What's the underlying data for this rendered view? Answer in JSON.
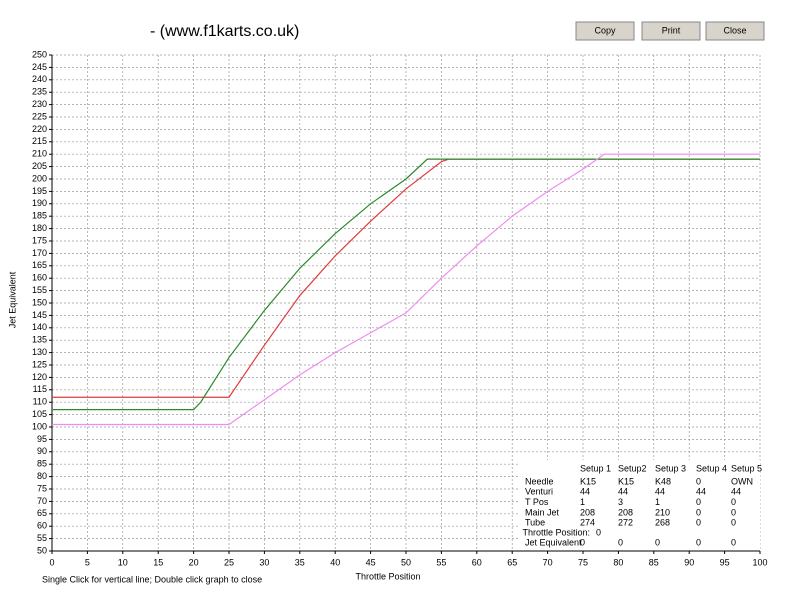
{
  "window": {
    "title": "- (www.f1karts.co.uk)",
    "buttons": [
      "Copy",
      "Print",
      "Close"
    ],
    "footer": "Single Click for vertical line; Double click graph to close"
  },
  "chart_data": {
    "type": "line",
    "x_label": "Throttle Position",
    "y_label": "Jet Equivalent",
    "xlim": [
      0,
      100
    ],
    "ylim": [
      50,
      250
    ],
    "xticks": [
      0,
      5,
      10,
      15,
      20,
      25,
      30,
      35,
      40,
      45,
      50,
      55,
      60,
      65,
      70,
      75,
      80,
      85,
      90,
      95,
      100
    ],
    "yticks": [
      50,
      55,
      60,
      65,
      70,
      75,
      80,
      85,
      90,
      95,
      100,
      105,
      110,
      115,
      120,
      125,
      130,
      135,
      140,
      145,
      150,
      155,
      160,
      165,
      170,
      175,
      180,
      185,
      190,
      195,
      200,
      205,
      210,
      215,
      220,
      225,
      230,
      235,
      240,
      245,
      250
    ],
    "grid": true,
    "series": [
      {
        "color": "#e03a3a",
        "x": [
          0,
          25,
          30,
          35,
          40,
          45,
          50,
          55,
          56,
          100
        ],
        "values": [
          112,
          112,
          133,
          153,
          169,
          183,
          196,
          207,
          208,
          208
        ]
      },
      {
        "color": "#2a8a2a",
        "x": [
          0,
          20,
          21,
          25,
          30,
          35,
          40,
          45,
          50,
          53,
          100
        ],
        "values": [
          107,
          107,
          110,
          128,
          147,
          164,
          178,
          190,
          200,
          208,
          208
        ]
      },
      {
        "color": "#f08cf0",
        "x": [
          0,
          25,
          30,
          35,
          40,
          45,
          50,
          55,
          60,
          65,
          70,
          75,
          78,
          100
        ],
        "values": [
          101,
          101,
          111,
          121,
          130,
          138,
          146,
          160,
          173,
          185,
          195,
          204,
          210,
          210
        ]
      }
    ]
  },
  "info_panel": {
    "headers": [
      {
        "label": "Setup 1",
        "color": "#e03a3a"
      },
      {
        "label": "Setup2",
        "color": "#2a8a2a"
      },
      {
        "label": "Setup 3",
        "color": "#e040e0"
      },
      {
        "label": "Setup 4",
        "color": "#2a2ae0"
      },
      {
        "label": "Setup 5",
        "color": "#a01010"
      }
    ],
    "rows": [
      {
        "label": "Needle",
        "cells": [
          "K15",
          "K15",
          "K48",
          0,
          "OWN"
        ]
      },
      {
        "label": "Venturi",
        "cells": [
          44,
          44,
          44,
          44,
          44
        ]
      },
      {
        "label": "T Pos",
        "cells": [
          1,
          3,
          1,
          0,
          0
        ]
      },
      {
        "label": "Main Jet",
        "cells": [
          208,
          208,
          210,
          0,
          0
        ]
      },
      {
        "label": "Tube",
        "cells": [
          274,
          272,
          268,
          0,
          0
        ]
      }
    ],
    "throttle_position": {
      "label": "Throttle Position:",
      "value": 0
    },
    "jet_equivalent": {
      "label": "Jet Equivalent",
      "cells": [
        0,
        0,
        0,
        0,
        0
      ]
    }
  }
}
